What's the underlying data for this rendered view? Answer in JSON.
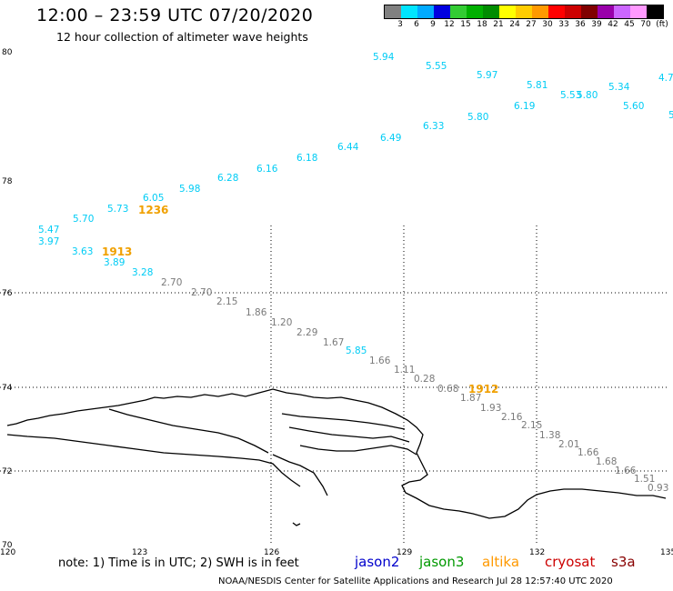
{
  "header": {
    "title": "12:00 – 23:59 UTC 07/20/2020",
    "subtitle": "12 hour collection of altimeter wave heights"
  },
  "colorbar": {
    "colors": [
      "#808080",
      "#00e5ff",
      "#00aaff",
      "#0000e0",
      "#33cc33",
      "#00b000",
      "#008c00",
      "#ffff00",
      "#ffcc00",
      "#ff9900",
      "#ff0000",
      "#cc0000",
      "#800000",
      "#9900aa",
      "#cc66ff",
      "#ff99ff",
      "#000000"
    ],
    "labels": [
      "3",
      "6",
      "9",
      "12",
      "15",
      "18",
      "21",
      "24",
      "27",
      "30",
      "33",
      "36",
      "39",
      "42",
      "45",
      "70",
      "(ft)"
    ]
  },
  "axes": {
    "lat_labels": [
      "80",
      "78",
      "76",
      "74",
      "72",
      "70"
    ],
    "lon_labels": [
      "120",
      "123",
      "126",
      "129",
      "132",
      "135"
    ]
  },
  "colors": {
    "cyan": "#00ccf5",
    "gray": "#7a7a7a",
    "orange": "#f0a000"
  },
  "time_labels": [
    "1236",
    "1913",
    "1912"
  ],
  "swh_cyan": [
    "5.94",
    "5.55",
    "5.97",
    "5.81",
    "5.53",
    "5.80",
    "5.34",
    "4.7",
    "5.60",
    "5",
    "6.19",
    "5.80",
    "6.33",
    "6.49",
    "6.44",
    "6.18",
    "6.16",
    "6.28",
    "5.98",
    "6.05",
    "5.73",
    "5.70",
    "5.47",
    "3.97",
    "3.63",
    "3.89",
    "3.28",
    "5.85"
  ],
  "swh_gray": [
    "2.70",
    "2.70",
    "2.15",
    "1.86",
    "1.20",
    "2.29",
    "1.67",
    "1.66",
    "1.11",
    "0.28",
    "0.68",
    "1.87",
    "1.93",
    "2.16",
    "2.15",
    "1.38",
    "2.01",
    "1.66",
    "1.68",
    "1.66",
    "1.51",
    "0.93"
  ],
  "footer": {
    "note": "note:  1) Time is in UTC;  2) SWH is in feet",
    "satellites": [
      {
        "name": "jason2",
        "color": "#0000cc"
      },
      {
        "name": "jason3",
        "color": "#009900"
      },
      {
        "name": "altika",
        "color": "#ff9900"
      },
      {
        "name": "cryosat",
        "color": "#cc0000"
      },
      {
        "name": "s3a",
        "color": "#880000"
      }
    ],
    "credit": "NOAA/NESDIS Center for Satellite Applications and Research     Jul 28 12:57:40 UTC 2020"
  }
}
